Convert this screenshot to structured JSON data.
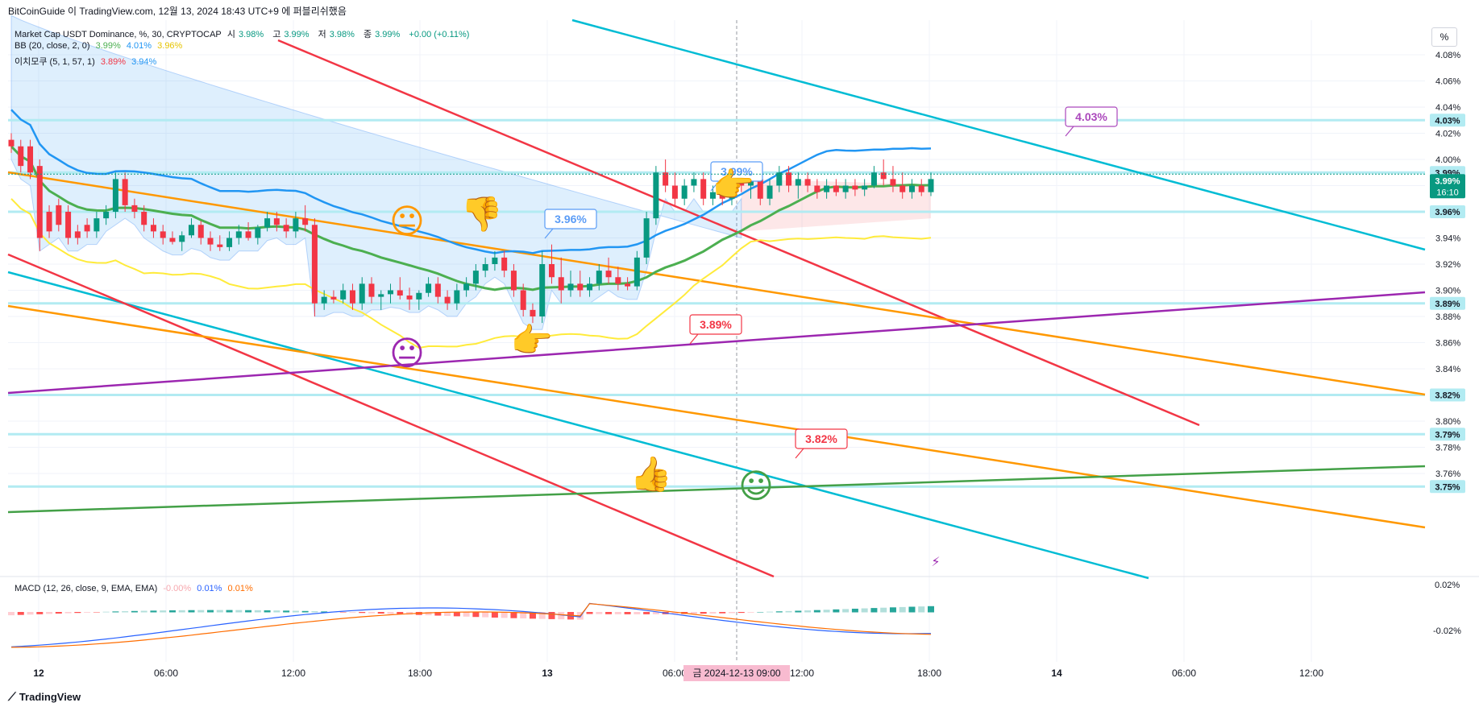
{
  "header": {
    "title": "BitCoinGuide 이 TradingView.com, 12월 13, 2024 18:43 UTC+9 에 퍼블리쉬했음"
  },
  "legend": {
    "symbol": "Market Cap USDT Dominance, %, 30, CRYPTOCAP",
    "ohlc": [
      {
        "label": "시",
        "value": "3.98%"
      },
      {
        "label": "고",
        "value": "3.99%"
      },
      {
        "label": "저",
        "value": "3.98%"
      },
      {
        "label": "종",
        "value": "3.99%"
      }
    ],
    "change": "+0.00 (+0.11%)",
    "bb_label": "BB (20, close, 2, 0)",
    "bb_values": [
      "3.99%",
      "4.01%",
      "3.96%"
    ],
    "ichimoku_label": "이치모쿠 (5, 1, 57, 1)",
    "ichimoku_values": [
      "3.89%",
      "3.94%"
    ],
    "macd_label": "MACD (12, 26, close, 9, EMA, EMA)",
    "macd_values": [
      "-0.00%",
      "0.01%",
      "0.01%"
    ]
  },
  "scale_button": "%",
  "footer": {
    "brand": "TradingView",
    "logo": "tradingview-logo-icon"
  },
  "colors": {
    "up": "#089981",
    "down": "#f23645",
    "bb_basis": "#4caf50",
    "bb_band": "#2196f3",
    "ichimoku_lead": "#ffeb3b",
    "cyan_line": "#00bcd4",
    "red_line": "#f23645",
    "orange_line": "#ff9800",
    "purple_line": "#9c27b0",
    "green_line": "#43a047",
    "level_line": "#b2ebf2",
    "macd_line": "#2962ff",
    "signal_line": "#ff6d00"
  },
  "chart_data": {
    "type": "candlestick",
    "price_axis": {
      "ticks": [
        "4.08%",
        "4.06%",
        "4.04%",
        "4.02%",
        "4.00%",
        "3.94%",
        "3.92%",
        "3.90%",
        "3.88%",
        "3.86%",
        "3.84%",
        "3.82%",
        "3.80%",
        "3.78%",
        "3.76%"
      ],
      "range": [
        3.745,
        4.11
      ]
    },
    "time_axis": {
      "labels": [
        "12",
        "06:00",
        "12:00",
        "18:00",
        "13",
        "06:00",
        "12:00",
        "18:00",
        "14",
        "06:00",
        "12:00"
      ],
      "crosshair_label": "금 2024-12-13   09:00"
    },
    "current_price": {
      "value": "3.99%",
      "countdown": "16:10"
    },
    "level_lines": [
      {
        "value": 4.03,
        "label": "4.03%"
      },
      {
        "value": 3.99,
        "label": "3.99%"
      },
      {
        "value": 3.96,
        "label": "3.96%"
      },
      {
        "value": 3.89,
        "label": "3.89%"
      },
      {
        "value": 3.82,
        "label": "3.82%"
      },
      {
        "value": 3.79,
        "label": "3.79%"
      },
      {
        "value": 3.75,
        "label": "3.75%"
      }
    ],
    "callouts": [
      {
        "text": "3.96%",
        "color": "#5b9cf6"
      },
      {
        "text": "3.99%",
        "color": "#5b9cf6"
      },
      {
        "text": "4.03%",
        "color": "#ab47bc"
      },
      {
        "text": "3.89%",
        "color": "#f23645"
      },
      {
        "text": "3.82%",
        "color": "#f23645"
      }
    ],
    "candles": [
      [
        4.015,
        4.02,
        4.005,
        4.01
      ],
      [
        4.01,
        4.015,
        3.99,
        3.995
      ],
      [
        4.01,
        4.015,
        3.985,
        3.99
      ],
      [
        3.995,
        4.0,
        3.93,
        3.94
      ],
      [
        3.96,
        3.965,
        3.94,
        3.945
      ],
      [
        3.965,
        3.97,
        3.945,
        3.95
      ],
      [
        3.96,
        3.965,
        3.935,
        3.94
      ],
      [
        3.945,
        3.95,
        3.935,
        3.94
      ],
      [
        3.95,
        3.955,
        3.94,
        3.945
      ],
      [
        3.945,
        3.96,
        3.94,
        3.955
      ],
      [
        3.955,
        3.965,
        3.95,
        3.96
      ],
      [
        3.96,
        3.99,
        3.955,
        3.985
      ],
      [
        3.985,
        3.99,
        3.96,
        3.965
      ],
      [
        3.965,
        3.97,
        3.955,
        3.96
      ],
      [
        3.96,
        3.965,
        3.945,
        3.95
      ],
      [
        3.95,
        3.955,
        3.94,
        3.945
      ],
      [
        3.945,
        3.95,
        3.935,
        3.94
      ],
      [
        3.94,
        3.945,
        3.935,
        3.937
      ],
      [
        3.937,
        3.945,
        3.93,
        3.942
      ],
      [
        3.942,
        3.955,
        3.94,
        3.95
      ],
      [
        3.95,
        3.953,
        3.935,
        3.94
      ],
      [
        3.94,
        3.945,
        3.93,
        3.935
      ],
      [
        3.935,
        3.942,
        3.93,
        3.933
      ],
      [
        3.933,
        3.945,
        3.93,
        3.94
      ],
      [
        3.94,
        3.95,
        3.935,
        3.945
      ],
      [
        3.945,
        3.952,
        3.938,
        3.94
      ],
      [
        3.94,
        3.95,
        3.935,
        3.948
      ],
      [
        3.948,
        3.96,
        3.945,
        3.955
      ],
      [
        3.955,
        3.96,
        3.945,
        3.95
      ],
      [
        3.95,
        3.955,
        3.94,
        3.945
      ],
      [
        3.945,
        3.96,
        3.94,
        3.955
      ],
      [
        3.955,
        3.965,
        3.945,
        3.95
      ],
      [
        3.95,
        3.955,
        3.88,
        3.89
      ],
      [
        3.89,
        3.9,
        3.885,
        3.895
      ],
      [
        3.895,
        3.9,
        3.89,
        3.893
      ],
      [
        3.893,
        3.905,
        3.89,
        3.9
      ],
      [
        3.9,
        3.905,
        3.885,
        3.89
      ],
      [
        3.89,
        3.91,
        3.885,
        3.905
      ],
      [
        3.905,
        3.91,
        3.89,
        3.895
      ],
      [
        3.895,
        3.9,
        3.885,
        3.897
      ],
      [
        3.897,
        3.905,
        3.89,
        3.9
      ],
      [
        3.9,
        3.91,
        3.893,
        3.896
      ],
      [
        3.896,
        3.902,
        3.885,
        3.893
      ],
      [
        3.893,
        3.9,
        3.885,
        3.898
      ],
      [
        3.898,
        3.91,
        3.895,
        3.905
      ],
      [
        3.905,
        3.91,
        3.89,
        3.895
      ],
      [
        3.895,
        3.9,
        3.885,
        3.89
      ],
      [
        3.89,
        3.905,
        3.885,
        3.9
      ],
      [
        3.9,
        3.91,
        3.895,
        3.905
      ],
      [
        3.905,
        3.92,
        3.9,
        3.915
      ],
      [
        3.915,
        3.925,
        3.91,
        3.92
      ],
      [
        3.92,
        3.93,
        3.915,
        3.925
      ],
      [
        3.925,
        3.93,
        3.91,
        3.915
      ],
      [
        3.915,
        3.92,
        3.895,
        3.9
      ],
      [
        3.9,
        3.905,
        3.88,
        3.885
      ],
      [
        3.885,
        3.89,
        3.875,
        3.88
      ],
      [
        3.88,
        3.93,
        3.875,
        3.92
      ],
      [
        3.92,
        3.935,
        3.905,
        3.91
      ],
      [
        3.91,
        3.925,
        3.89,
        3.9
      ],
      [
        3.9,
        3.915,
        3.895,
        3.905
      ],
      [
        3.905,
        3.915,
        3.895,
        3.9
      ],
      [
        3.9,
        3.91,
        3.895,
        3.905
      ],
      [
        3.905,
        3.92,
        3.9,
        3.915
      ],
      [
        3.915,
        3.925,
        3.905,
        3.91
      ],
      [
        3.91,
        3.918,
        3.9,
        3.905
      ],
      [
        3.905,
        3.91,
        3.9,
        3.903
      ],
      [
        3.903,
        3.93,
        3.9,
        3.925
      ],
      [
        3.925,
        3.96,
        3.92,
        3.955
      ],
      [
        3.955,
        3.995,
        3.95,
        3.99
      ],
      [
        3.99,
        4.0,
        3.975,
        3.98
      ],
      [
        3.98,
        3.99,
        3.965,
        3.97
      ],
      [
        3.97,
        3.985,
        3.965,
        3.98
      ],
      [
        3.98,
        3.99,
        3.975,
        3.985
      ],
      [
        3.985,
        3.99,
        3.965,
        3.97
      ],
      [
        3.97,
        3.98,
        3.965,
        3.975
      ],
      [
        3.975,
        3.985,
        3.965,
        3.97
      ],
      [
        3.97,
        3.99,
        3.965,
        3.985
      ],
      [
        3.985,
        3.99,
        3.975,
        3.98
      ],
      [
        3.98,
        3.99,
        3.97,
        3.985
      ],
      [
        3.985,
        3.99,
        3.965,
        3.97
      ],
      [
        3.97,
        3.985,
        3.965,
        3.98
      ],
      [
        3.98,
        3.995,
        3.975,
        3.99
      ],
      [
        3.99,
        3.995,
        3.975,
        3.98
      ],
      [
        3.98,
        3.99,
        3.97,
        3.985
      ],
      [
        3.985,
        3.99,
        3.975,
        3.98
      ],
      [
        3.98,
        3.985,
        3.97,
        3.975
      ],
      [
        3.975,
        3.985,
        3.97,
        3.98
      ],
      [
        3.98,
        3.985,
        3.972,
        3.975
      ],
      [
        3.975,
        3.985,
        3.97,
        3.98
      ],
      [
        3.98,
        3.985,
        3.972,
        3.977
      ],
      [
        3.977,
        3.985,
        3.972,
        3.98
      ],
      [
        3.98,
        3.995,
        3.978,
        3.99
      ],
      [
        3.99,
        4.0,
        3.98,
        3.985
      ],
      [
        3.985,
        3.995,
        3.975,
        3.98
      ],
      [
        3.98,
        3.99,
        3.97,
        3.975
      ],
      [
        3.975,
        3.985,
        3.97,
        3.98
      ],
      [
        3.98,
        3.985,
        3.972,
        3.975
      ],
      [
        3.975,
        3.99,
        3.972,
        3.985
      ]
    ],
    "macd_axis": {
      "ticks": [
        "0.02%",
        "-0.02%"
      ]
    }
  }
}
